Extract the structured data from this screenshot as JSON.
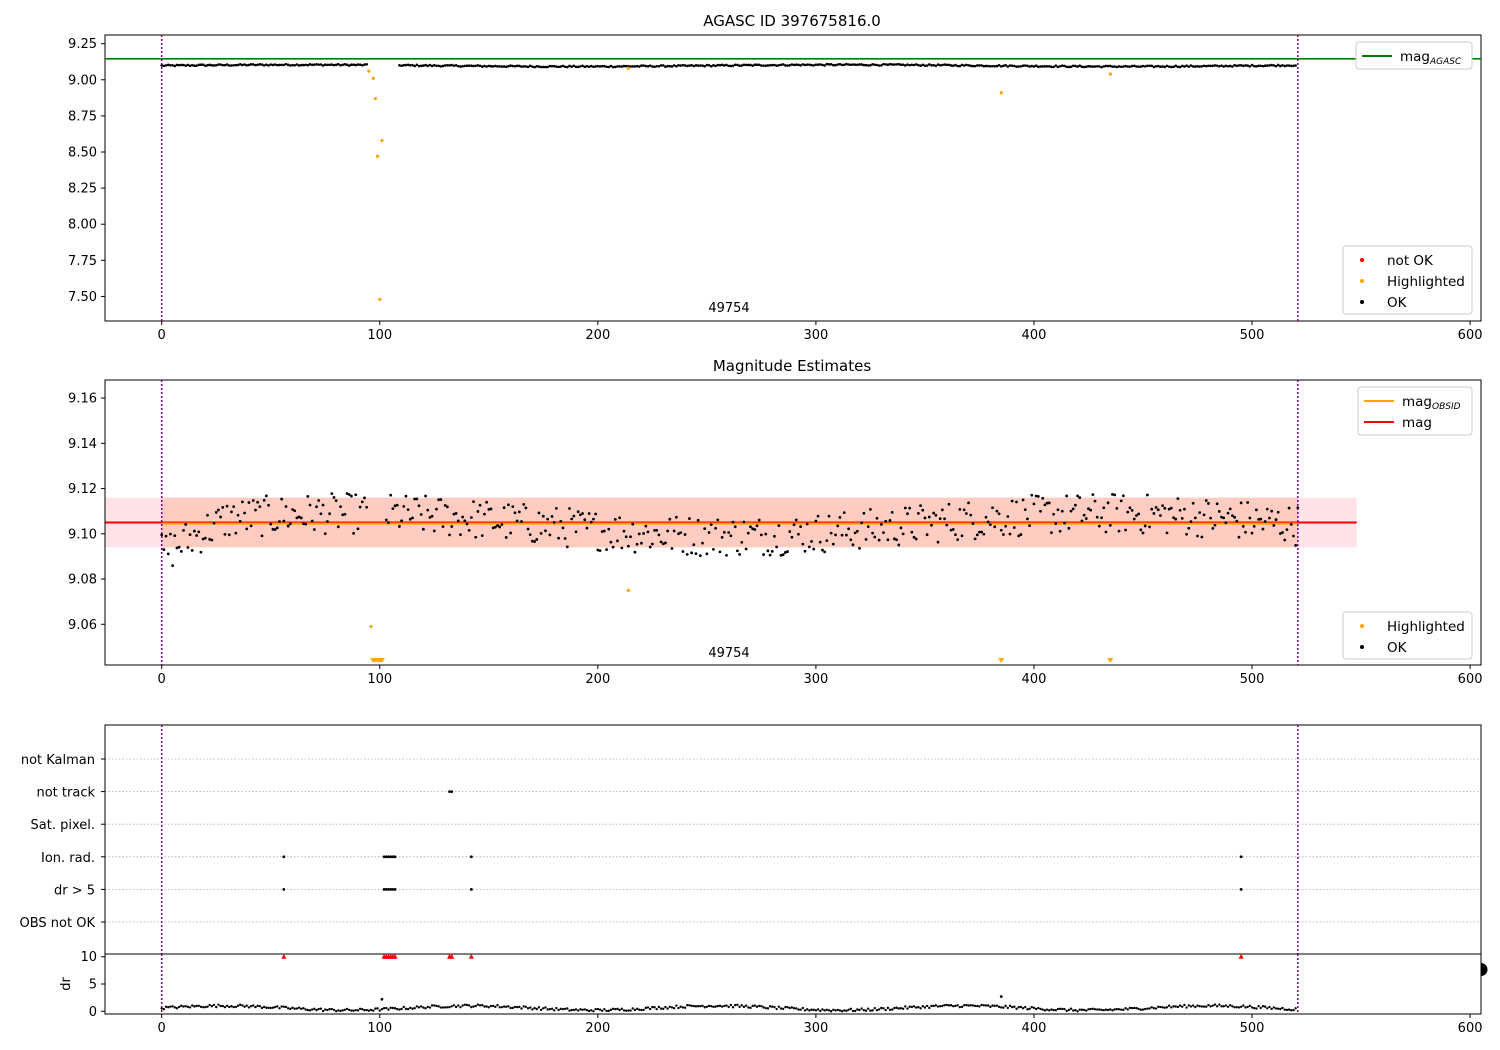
{
  "chart_data": [
    {
      "type": "scatter",
      "title": "AGASC ID 397675816.0",
      "xlim": [
        -26,
        605
      ],
      "ylim": [
        7.33,
        9.31
      ],
      "xticks": [
        "0",
        "100",
        "200",
        "300",
        "400",
        "500",
        "600"
      ],
      "yticks": [
        "7.50",
        "7.75",
        "8.00",
        "8.25",
        "8.50",
        "8.75",
        "9.00",
        "9.25"
      ],
      "obsid_boundaries": [
        0,
        521
      ],
      "obsid_label": "49754",
      "mag_agasc": 9.145,
      "ok_series": {
        "baseline": 9.098,
        "amplitude": 0.01,
        "x_range": [
          0,
          520
        ],
        "gap": [
          94,
          109
        ]
      },
      "highlighted_points": [
        {
          "x": 95,
          "y": 9.06
        },
        {
          "x": 97,
          "y": 9.01
        },
        {
          "x": 98,
          "y": 8.87
        },
        {
          "x": 99,
          "y": 8.47
        },
        {
          "x": 100,
          "y": 7.48
        },
        {
          "x": 101,
          "y": 8.58
        },
        {
          "x": 214,
          "y": 9.08
        },
        {
          "x": 385,
          "y": 8.91
        },
        {
          "x": 435,
          "y": 9.04
        }
      ],
      "legends": [
        {
          "position": "top-right",
          "entries": [
            {
              "label": "mag",
              "sub": "AGASC",
              "color": "#008000",
              "marker": "line"
            }
          ]
        },
        {
          "position": "bottom-right",
          "entries": [
            {
              "label": "not OK",
              "color": "#ff0000",
              "marker": "dot"
            },
            {
              "label": "Highlighted",
              "color": "#ffa500",
              "marker": "dot"
            },
            {
              "label": "OK",
              "color": "#000000",
              "marker": "dot"
            }
          ]
        }
      ]
    },
    {
      "type": "scatter",
      "title": "Magnitude Estimates",
      "xlim": [
        -26,
        605
      ],
      "ylim": [
        9.042,
        9.168
      ],
      "xticks": [
        "0",
        "100",
        "200",
        "300",
        "400",
        "500",
        "600"
      ],
      "yticks": [
        "9.06",
        "9.08",
        "9.10",
        "9.12",
        "9.14",
        "9.16"
      ],
      "obsid_boundaries": [
        0,
        521
      ],
      "obsid_label": "49754",
      "mag": 9.105,
      "mag_band": [
        9.094,
        9.116
      ],
      "mag_obsid": 9.1045,
      "mag_obsid_band": [
        9.094,
        9.116
      ],
      "ok_series": {
        "baseline": 9.104,
        "spread": 0.009,
        "x_range": [
          0,
          521
        ]
      },
      "highlighted_points": [
        {
          "x": 96,
          "y": 9.059
        },
        {
          "x": 214,
          "y": 9.075
        }
      ],
      "out_of_range_markers": [
        97,
        98,
        99,
        100,
        101,
        385,
        435
      ],
      "legends": [
        {
          "position": "top-right",
          "entries": [
            {
              "label": "mag",
              "sub": "OBSID",
              "color": "#ffa500",
              "marker": "line"
            },
            {
              "label": "mag",
              "sub": "",
              "color": "#ff0000",
              "marker": "line"
            }
          ]
        },
        {
          "position": "bottom-right",
          "entries": [
            {
              "label": "Highlighted",
              "color": "#ffa500",
              "marker": "dot"
            },
            {
              "label": "OK",
              "color": "#000000",
              "marker": "dot"
            }
          ]
        }
      ]
    },
    {
      "type": "scatter",
      "title": "",
      "xlim": [
        -26,
        605
      ],
      "obsid_boundaries": [
        0,
        521
      ],
      "flag_rows": [
        "not Kalman",
        "not track",
        "Sat. pixel.",
        "Ion. rad.",
        "dr > 5",
        "OBS not OK"
      ],
      "flag_points": {
        "not track": [
          132,
          133
        ],
        "Ion. rad.": [
          56,
          102,
          103,
          104,
          105,
          106,
          107,
          142,
          495
        ],
        "dr > 5": [
          56,
          102,
          103,
          104,
          105,
          106,
          107,
          142,
          495
        ]
      }
    },
    {
      "type": "scatter",
      "title": "",
      "ylabel": "dr",
      "xlim": [
        -26,
        605
      ],
      "ylim": [
        -0.5,
        10.5
      ],
      "xticks": [
        "0",
        "100",
        "200",
        "300",
        "400",
        "500",
        "600"
      ],
      "yticks": [
        "0",
        "5",
        "10"
      ],
      "obsid_boundaries": [
        0,
        521
      ],
      "clipped_markers": [
        56,
        102,
        103,
        104,
        105,
        106,
        107,
        132,
        133,
        142,
        495
      ],
      "ok_series": {
        "baseline": 0.6,
        "x_range": [
          0,
          520
        ]
      },
      "outliers": [
        {
          "x": 101,
          "y": 2.2
        },
        {
          "x": 385,
          "y": 2.7
        }
      ]
    }
  ]
}
